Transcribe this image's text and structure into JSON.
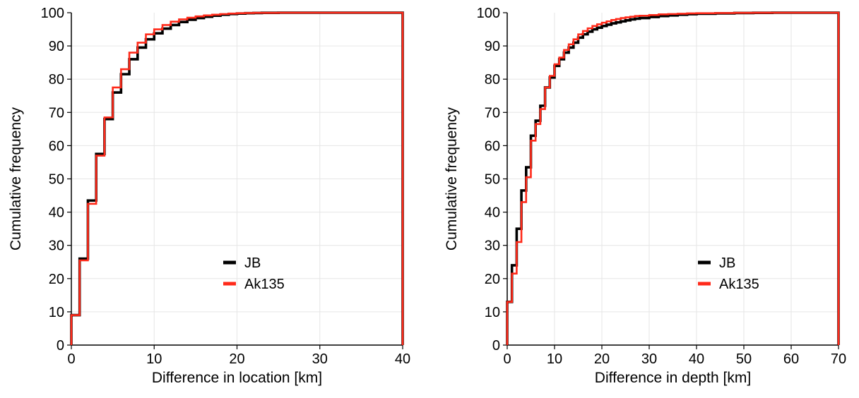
{
  "chart_data": [
    {
      "type": "line",
      "step": true,
      "xlabel": "Difference in location [km]",
      "ylabel": "Cumulative frequency",
      "xlim": [
        0,
        40
      ],
      "ylim": [
        0,
        100
      ],
      "xticks": [
        0,
        10,
        20,
        30,
        40
      ],
      "yticks": [
        0,
        10,
        20,
        30,
        40,
        50,
        60,
        70,
        80,
        90,
        100
      ],
      "grid": true,
      "legend_position": "lower-right",
      "series": [
        {
          "name": "JB",
          "color": "#000000",
          "x": [
            0,
            1,
            2,
            3,
            4,
            5,
            6,
            7,
            8,
            9,
            10,
            11,
            12,
            13,
            14,
            15,
            16,
            17,
            18,
            19,
            20,
            21,
            22,
            23,
            25,
            40
          ],
          "y": [
            9,
            26,
            43.5,
            57.5,
            68,
            76,
            81.5,
            86,
            89.5,
            92,
            93.8,
            95.2,
            96.3,
            97.2,
            97.9,
            98.4,
            98.8,
            99.1,
            99.4,
            99.6,
            99.75,
            99.85,
            99.9,
            99.95,
            100,
            100
          ]
        },
        {
          "name": "Ak135",
          "color": "#ff2a1a",
          "x": [
            0,
            1,
            2,
            3,
            4,
            5,
            6,
            7,
            8,
            9,
            10,
            11,
            12,
            13,
            14,
            15,
            16,
            17,
            18,
            19,
            20,
            21,
            22,
            23,
            25,
            40
          ],
          "y": [
            9,
            25.5,
            42.5,
            57,
            68.5,
            77.5,
            83,
            88,
            91,
            93.5,
            95,
            96.3,
            97.3,
            98,
            98.5,
            98.9,
            99.2,
            99.4,
            99.6,
            99.75,
            99.85,
            99.9,
            99.95,
            99.97,
            100,
            100
          ]
        }
      ]
    },
    {
      "type": "line",
      "step": true,
      "xlabel": "Difference in depth [km]",
      "ylabel": "Cumulative frequency",
      "xlim": [
        0,
        70
      ],
      "ylim": [
        0,
        100
      ],
      "xticks": [
        0,
        10,
        20,
        30,
        40,
        50,
        60,
        70
      ],
      "yticks": [
        0,
        10,
        20,
        30,
        40,
        50,
        60,
        70,
        80,
        90,
        100
      ],
      "grid": true,
      "legend_position": "lower-right",
      "series": [
        {
          "name": "JB",
          "color": "#000000",
          "x": [
            0,
            1,
            2,
            3,
            4,
            5,
            6,
            7,
            8,
            9,
            10,
            11,
            12,
            13,
            14,
            15,
            16,
            17,
            18,
            19,
            20,
            21,
            22,
            23,
            24,
            25,
            26,
            27,
            28,
            30,
            32,
            34,
            36,
            38,
            40,
            44,
            48,
            52,
            56,
            70
          ],
          "y": [
            13,
            24,
            35,
            46.5,
            53.5,
            63,
            67.5,
            72,
            77.5,
            80.5,
            84,
            86,
            88,
            89.5,
            91,
            92.5,
            93.5,
            94.3,
            95,
            95.5,
            96,
            96.4,
            96.8,
            97.1,
            97.4,
            97.7,
            98,
            98.2,
            98.4,
            98.7,
            99,
            99.2,
            99.4,
            99.55,
            99.7,
            99.8,
            99.9,
            99.95,
            100,
            100
          ]
        },
        {
          "name": "Ak135",
          "color": "#ff2a1a",
          "x": [
            0,
            1,
            2,
            3,
            4,
            5,
            6,
            7,
            8,
            9,
            10,
            11,
            12,
            13,
            14,
            15,
            16,
            17,
            18,
            19,
            20,
            21,
            22,
            23,
            24,
            25,
            26,
            27,
            28,
            30,
            32,
            34,
            36,
            38,
            40,
            44,
            48,
            52,
            56,
            70
          ],
          "y": [
            13,
            21.5,
            31,
            43,
            50.5,
            61.5,
            66.5,
            71,
            77.5,
            81,
            84.5,
            86.5,
            88.8,
            90.5,
            92,
            93.5,
            94.5,
            95.3,
            96,
            96.5,
            97,
            97.4,
            97.8,
            98.1,
            98.4,
            98.6,
            98.8,
            99,
            99.1,
            99.3,
            99.5,
            99.6,
            99.7,
            99.8,
            99.85,
            99.9,
            99.95,
            99.98,
            100,
            100
          ]
        }
      ]
    }
  ]
}
